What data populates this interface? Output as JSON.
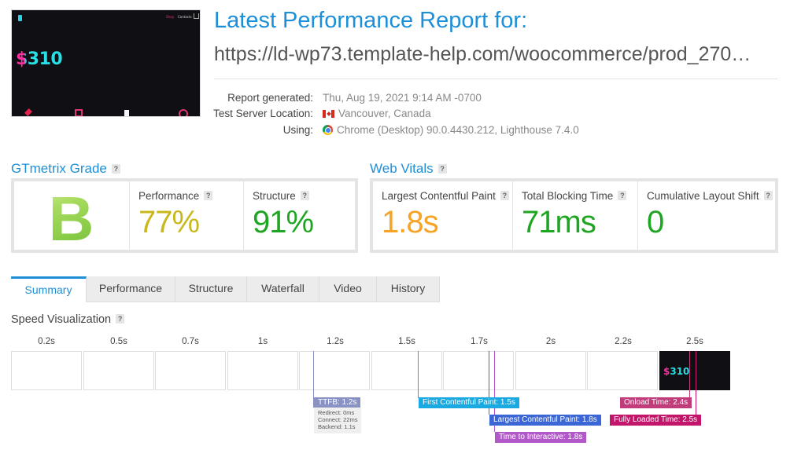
{
  "header": {
    "title": "Latest Performance Report for:",
    "url": "https://ld-wp73.template-help.com/woocommerce/prod_270…"
  },
  "thumbnail": {
    "nav_1": "Shop",
    "nav_2": "Contacts",
    "price": "$310"
  },
  "meta": {
    "report_generated_label": "Report generated:",
    "report_generated_value": "Thu, Aug 19, 2021 9:14 AM -0700",
    "server_location_label": "Test Server Location:",
    "server_location_value": "Vancouver, Canada",
    "using_label": "Using:",
    "using_value": "Chrome (Desktop) 90.0.4430.212, Lighthouse 7.4.0"
  },
  "grade": {
    "heading": "GTmetrix Grade",
    "letter": "B",
    "performance_label": "Performance",
    "performance_value": "77%",
    "structure_label": "Structure",
    "structure_value": "91%"
  },
  "vitals": {
    "heading": "Web Vitals",
    "lcp_label": "Largest Contentful Paint",
    "lcp_value": "1.8s",
    "tbt_label": "Total Blocking Time",
    "tbt_value": "71ms",
    "cls_label": "Cumulative Layout Shift",
    "cls_value": "0"
  },
  "tabs": [
    "Summary",
    "Performance",
    "Structure",
    "Waterfall",
    "Video",
    "History"
  ],
  "speed": {
    "heading": "Speed Visualization",
    "ticks": [
      "0.2s",
      "0.5s",
      "0.7s",
      "1s",
      "1.2s",
      "1.5s",
      "1.7s",
      "2s",
      "2.2s",
      "2.5s"
    ],
    "frame_price": "$310",
    "markers": {
      "ttfb": "TTFB: 1.2s",
      "redirect": "Redirect: 0ms",
      "connect": "Connect: 22ms",
      "backend": "Backend: 1.1s",
      "fcp": "First Contentful Paint: 1.5s",
      "lcp": "Largest Contentful Paint: 1.8s",
      "tti": "Time to Interactive: 1.8s",
      "onload": "Onload Time: 2.4s",
      "fully_loaded": "Fully Loaded Time: 2.5s"
    }
  },
  "colors": {
    "accent": "#1d8fd8",
    "perf_value": "#c9b81c",
    "good": "#1ea623",
    "lcp_value": "#f7a325",
    "ttfb": "#8a92c4",
    "fcp": "#1aa9e0",
    "lcp_marker": "#3a66d6",
    "tti": "#b259c9",
    "onload": "#c03c7a",
    "fully_loaded": "#c3166b"
  }
}
